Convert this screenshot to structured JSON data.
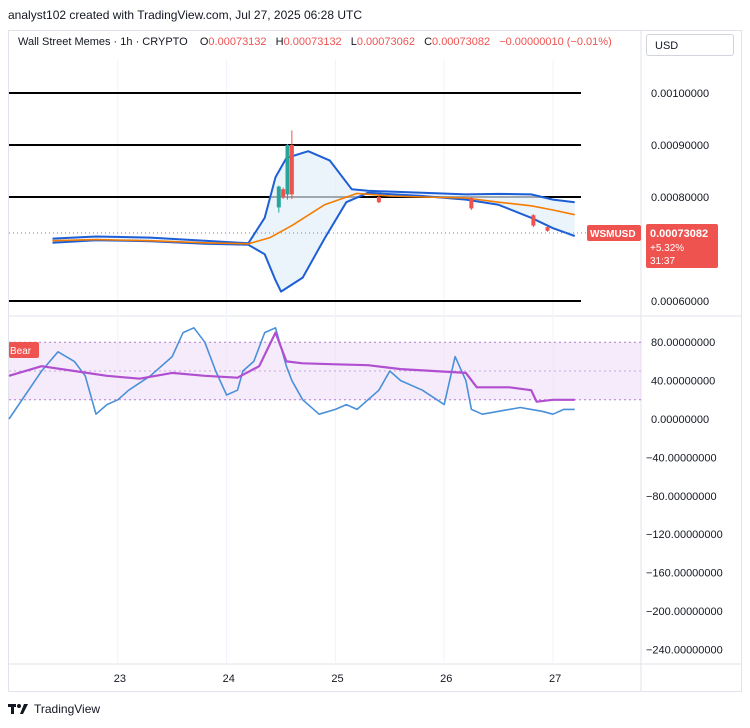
{
  "attribution": "analyst102 created with TradingView.com, Jul 27, 2025 06:28 UTC",
  "header": {
    "symbol": "Wall Street Memes · 1h · CRYPTO",
    "open_label": "O",
    "open": "0.00073132",
    "high_label": "H",
    "high": "0.00073132",
    "low_label": "L",
    "low": "0.00073062",
    "close_label": "C",
    "close": "0.00073082",
    "change": "−0.00000010 (−0.01%)"
  },
  "currency_button": "USD",
  "price_badge": {
    "symbol": "WSMUSD",
    "price": "0.00073082",
    "change_pct": "+5.32%",
    "countdown": "31:37"
  },
  "rsi_badge": "Bear",
  "logo_text": "TradingView",
  "colors": {
    "up": "#26a69a",
    "down": "#ef5350",
    "bands": "#1e5fd6",
    "basis": "#f57c00",
    "rsi": "#4a90d9",
    "rsi_ma": "#b04fd1",
    "zone": "#eedbf5",
    "badge": "#ef5350"
  },
  "chart_data": [
    {
      "type": "line",
      "title": "",
      "x_ticks": [
        "23",
        "24",
        "25",
        "26",
        "27"
      ],
      "y_ticks": [
        "0.00100000",
        "0.00090000",
        "0.00080000",
        "0.00060000"
      ],
      "ylim": [
        0.00055,
        0.00105
      ],
      "hlines": [
        0.001,
        0.0009,
        0.0008,
        0.0006
      ],
      "current_price": 0.00073082,
      "series": [
        {
          "name": "",
          "x": [
            22.4,
            22.8,
            23.3,
            23.8,
            24.2,
            24.35,
            24.45,
            24.5,
            24.7,
            24.9,
            25.1,
            25.3,
            25.8,
            26.2,
            26.5,
            26.8,
            27.0,
            27.2
          ],
          "values": [
            0.000712,
            0.000717,
            0.000715,
            0.00071,
            0.000708,
            0.00069,
            0.00064,
            0.000618,
            0.000645,
            0.00072,
            0.00079,
            0.000808,
            0.000802,
            0.000795,
            0.000785,
            0.00076,
            0.00074,
            0.000725
          ]
        },
        {
          "name": "",
          "x": [
            22.4,
            22.8,
            23.3,
            23.8,
            24.2,
            24.35,
            24.45,
            24.55,
            24.75,
            24.95,
            25.15,
            25.3,
            25.8,
            26.2,
            26.5,
            26.8,
            27.0,
            27.2
          ],
          "values": [
            0.00072,
            0.000724,
            0.000722,
            0.000716,
            0.000711,
            0.00076,
            0.000838,
            0.000875,
            0.000888,
            0.00087,
            0.000815,
            0.000812,
            0.000808,
            0.000805,
            0.000806,
            0.000805,
            0.000795,
            0.00079
          ]
        },
        {
          "name": "",
          "x": [
            22.4,
            22.8,
            23.3,
            23.8,
            24.2,
            24.4,
            24.6,
            24.9,
            25.2,
            25.5,
            25.8,
            26.2,
            26.5,
            26.8,
            27.0,
            27.2
          ],
          "values": [
            0.000716,
            0.000718,
            0.000716,
            0.000712,
            0.00071,
            0.000722,
            0.000745,
            0.000785,
            0.000807,
            0.000802,
            0.0008,
            0.000798,
            0.00079,
            0.000783,
            0.000775,
            0.000766
          ]
        }
      ],
      "candles": [
        {
          "x": 24.48,
          "open": 0.00078,
          "close": 0.00082,
          "high": 0.000822,
          "low": 0.00077
        },
        {
          "x": 24.52,
          "open": 0.000815,
          "close": 0.0008,
          "high": 0.000818,
          "low": 0.000796
        },
        {
          "x": 24.56,
          "open": 0.000805,
          "close": 0.0009,
          "high": 0.000902,
          "low": 0.000795
        },
        {
          "x": 24.6,
          "open": 0.0009,
          "close": 0.000805,
          "high": 0.000928,
          "low": 0.000796
        },
        {
          "x": 25.4,
          "open": 0.0008,
          "close": 0.00079,
          "high": 0.000802,
          "low": 0.000788
        },
        {
          "x": 26.25,
          "open": 0.000798,
          "close": 0.000778,
          "high": 0.0008,
          "low": 0.000775
        },
        {
          "x": 26.82,
          "open": 0.000765,
          "close": 0.000745,
          "high": 0.000767,
          "low": 0.000742
        },
        {
          "x": 26.95,
          "open": 0.000742,
          "close": 0.000735,
          "high": 0.000744,
          "low": 0.000733
        }
      ]
    },
    {
      "type": "line",
      "title": "",
      "x_ticks": [
        "23",
        "24",
        "25",
        "26",
        "27"
      ],
      "y_ticks": [
        "80.00000000",
        "40.00000000",
        "0.00000000",
        "−40.00000000",
        "−80.00000000",
        "−120.00000000",
        "−160.00000000",
        "−200.00000000",
        "−240.00000000"
      ],
      "ylim": [
        -250,
        110
      ],
      "overbought": 80,
      "oversold": 20,
      "series": [
        {
          "name": "",
          "x": [
            22.0,
            22.15,
            22.3,
            22.45,
            22.6,
            22.7,
            22.8,
            22.9,
            23.0,
            23.1,
            23.3,
            23.5,
            23.6,
            23.7,
            23.8,
            23.9,
            24.0,
            24.1,
            24.15,
            24.25,
            24.35,
            24.45,
            24.55,
            24.6,
            24.7,
            24.85,
            25.0,
            25.1,
            25.2,
            25.4,
            25.5,
            25.6,
            25.8,
            26.0,
            26.1,
            26.2,
            26.25,
            26.35,
            26.5,
            26.7,
            26.8,
            26.9,
            27.0,
            27.1,
            27.2
          ],
          "values": [
            0,
            25,
            50,
            70,
            60,
            45,
            5,
            15,
            20,
            30,
            45,
            65,
            90,
            95,
            80,
            50,
            25,
            30,
            50,
            60,
            90,
            95,
            55,
            40,
            20,
            5,
            10,
            15,
            10,
            30,
            50,
            40,
            30,
            15,
            65,
            40,
            10,
            5,
            8,
            12,
            10,
            8,
            5,
            10,
            10
          ]
        },
        {
          "name": "",
          "x": [
            22.0,
            22.3,
            22.6,
            22.9,
            23.2,
            23.5,
            23.8,
            24.1,
            24.3,
            24.45,
            24.55,
            24.7,
            25.0,
            25.3,
            25.6,
            25.9,
            26.2,
            26.3,
            26.6,
            26.8,
            26.85,
            27.0,
            27.2
          ],
          "values": [
            45,
            55,
            50,
            45,
            42,
            48,
            45,
            43,
            55,
            90,
            60,
            58,
            57,
            56,
            52,
            50,
            48,
            33,
            33,
            30,
            18,
            20,
            20
          ]
        }
      ]
    }
  ]
}
